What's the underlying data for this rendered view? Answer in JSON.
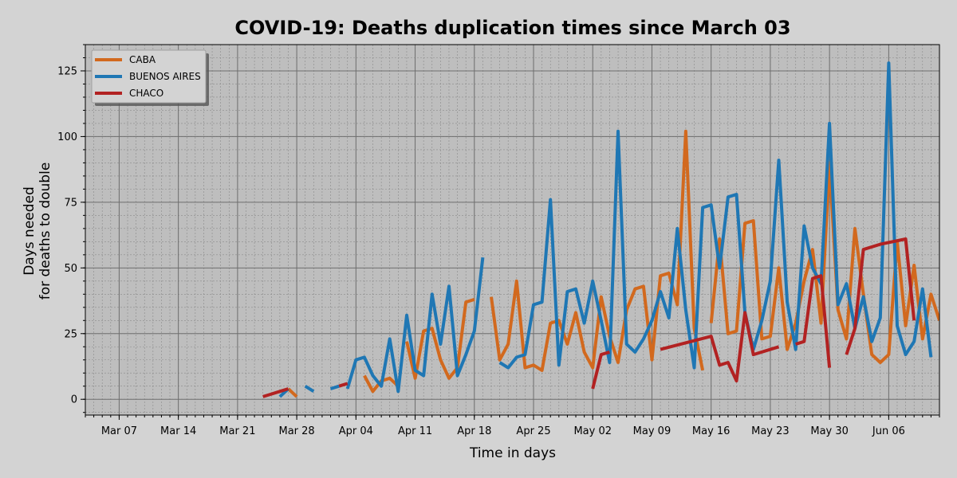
{
  "chart_data": {
    "type": "line",
    "title": "COVID-19: Deaths duplication times since March 03",
    "xlabel": "Time in days",
    "ylabel": "Days needed\nfor deaths to double",
    "x_unit": "date (2020)",
    "xlim": [
      "2020-03-03",
      "2020-06-12"
    ],
    "ylim": [
      -6,
      135
    ],
    "x_ticks": [
      {
        "label": "Mar 07",
        "date": "2020-03-07"
      },
      {
        "label": "Mar 14",
        "date": "2020-03-14"
      },
      {
        "label": "Mar 21",
        "date": "2020-03-21"
      },
      {
        "label": "Mar 28",
        "date": "2020-03-28"
      },
      {
        "label": "Apr 04",
        "date": "2020-04-04"
      },
      {
        "label": "Apr 11",
        "date": "2020-04-11"
      },
      {
        "label": "Apr 18",
        "date": "2020-04-18"
      },
      {
        "label": "Apr 25",
        "date": "2020-04-25"
      },
      {
        "label": "May 02",
        "date": "2020-05-02"
      },
      {
        "label": "May 09",
        "date": "2020-05-09"
      },
      {
        "label": "May 16",
        "date": "2020-05-16"
      },
      {
        "label": "May 23",
        "date": "2020-05-23"
      },
      {
        "label": "May 30",
        "date": "2020-05-30"
      },
      {
        "label": "Jun 06",
        "date": "2020-06-06"
      }
    ],
    "y_ticks": [
      0,
      25,
      50,
      75,
      100,
      125
    ],
    "grid": true,
    "minor_grid": true,
    "legend": "top-left",
    "colors": {
      "background": "#d3d3d3",
      "plot_area": "#bebebe"
    },
    "series": [
      {
        "name": "CABA",
        "color": "#d2691e",
        "segments": [
          [
            [
              "2020-03-27",
              4
            ],
            [
              "2020-03-28",
              1
            ]
          ],
          [
            [
              "2020-04-05",
              9
            ],
            [
              "2020-04-06",
              3
            ],
            [
              "2020-04-07",
              7
            ],
            [
              "2020-04-08",
              8
            ],
            [
              "2020-04-09",
              5
            ]
          ],
          [
            [
              "2020-04-10",
              22
            ],
            [
              "2020-04-11",
              8
            ],
            [
              "2020-04-12",
              26
            ],
            [
              "2020-04-13",
              27
            ],
            [
              "2020-04-14",
              15
            ],
            [
              "2020-04-15",
              8
            ],
            [
              "2020-04-16",
              12
            ],
            [
              "2020-04-17",
              37
            ],
            [
              "2020-04-18",
              38
            ]
          ],
          [
            [
              "2020-04-20",
              39
            ],
            [
              "2020-04-21",
              15
            ],
            [
              "2020-04-22",
              21
            ],
            [
              "2020-04-23",
              45
            ],
            [
              "2020-04-24",
              12
            ],
            [
              "2020-04-25",
              13
            ],
            [
              "2020-04-26",
              11
            ],
            [
              "2020-04-27",
              29
            ],
            [
              "2020-04-28",
              30
            ],
            [
              "2020-04-29",
              21
            ],
            [
              "2020-04-30",
              33
            ],
            [
              "2020-05-01",
              18
            ],
            [
              "2020-05-02",
              12
            ],
            [
              "2020-05-03",
              39
            ],
            [
              "2020-05-04",
              24
            ],
            [
              "2020-05-05",
              14
            ],
            [
              "2020-05-06",
              34
            ],
            [
              "2020-05-07",
              42
            ],
            [
              "2020-05-08",
              43
            ],
            [
              "2020-05-09",
              15
            ],
            [
              "2020-05-10",
              47
            ],
            [
              "2020-05-11",
              48
            ],
            [
              "2020-05-12",
              36
            ],
            [
              "2020-05-13",
              102
            ],
            [
              "2020-05-14",
              27
            ],
            [
              "2020-05-15",
              11
            ]
          ],
          [
            [
              "2020-05-16",
              29
            ],
            [
              "2020-05-17",
              61
            ],
            [
              "2020-05-18",
              25
            ],
            [
              "2020-05-19",
              26
            ],
            [
              "2020-05-20",
              67
            ],
            [
              "2020-05-21",
              68
            ],
            [
              "2020-05-22",
              23
            ],
            [
              "2020-05-23",
              24
            ],
            [
              "2020-05-24",
              50
            ],
            [
              "2020-05-25",
              19
            ],
            [
              "2020-05-26",
              29
            ],
            [
              "2020-05-27",
              45
            ],
            [
              "2020-05-28",
              57
            ],
            [
              "2020-05-29",
              29
            ],
            [
              "2020-05-30",
              90
            ],
            [
              "2020-05-31",
              34
            ],
            [
              "2020-06-01",
              23
            ],
            [
              "2020-06-02",
              65
            ],
            [
              "2020-06-03",
              40
            ],
            [
              "2020-06-04",
              17
            ],
            [
              "2020-06-05",
              14
            ],
            [
              "2020-06-06",
              17
            ],
            [
              "2020-06-07",
              60
            ],
            [
              "2020-06-08",
              28
            ],
            [
              "2020-06-09",
              51
            ],
            [
              "2020-06-10",
              23
            ],
            [
              "2020-06-11",
              40
            ],
            [
              "2020-06-12",
              30
            ]
          ]
        ]
      },
      {
        "name": "BUENOS AIRES",
        "color": "#1f77b4",
        "segments": [
          [
            [
              "2020-03-26",
              1
            ],
            [
              "2020-03-27",
              4
            ]
          ],
          [
            [
              "2020-03-29",
              5
            ],
            [
              "2020-03-30",
              3
            ]
          ],
          [
            [
              "2020-04-01",
              4
            ],
            [
              "2020-04-02",
              5
            ]
          ],
          [
            [
              "2020-04-03",
              4
            ],
            [
              "2020-04-04",
              15
            ],
            [
              "2020-04-05",
              16
            ],
            [
              "2020-04-06",
              9
            ],
            [
              "2020-04-07",
              5
            ],
            [
              "2020-04-08",
              23
            ],
            [
              "2020-04-09",
              3
            ],
            [
              "2020-04-10",
              32
            ],
            [
              "2020-04-11",
              11
            ],
            [
              "2020-04-12",
              9
            ],
            [
              "2020-04-13",
              40
            ],
            [
              "2020-04-14",
              21
            ],
            [
              "2020-04-15",
              43
            ],
            [
              "2020-04-16",
              9
            ],
            [
              "2020-04-17",
              17
            ],
            [
              "2020-04-18",
              26
            ],
            [
              "2020-04-19",
              54
            ]
          ],
          [
            [
              "2020-04-21",
              14
            ],
            [
              "2020-04-22",
              12
            ],
            [
              "2020-04-23",
              16
            ],
            [
              "2020-04-24",
              17
            ],
            [
              "2020-04-25",
              36
            ],
            [
              "2020-04-26",
              37
            ],
            [
              "2020-04-27",
              76
            ],
            [
              "2020-04-28",
              13
            ],
            [
              "2020-04-29",
              41
            ],
            [
              "2020-04-30",
              42
            ],
            [
              "2020-05-01",
              29
            ],
            [
              "2020-05-02",
              45
            ],
            [
              "2020-05-03",
              30
            ],
            [
              "2020-05-04",
              14
            ],
            [
              "2020-05-05",
              102
            ],
            [
              "2020-05-06",
              21
            ],
            [
              "2020-05-07",
              18
            ],
            [
              "2020-05-08",
              23
            ],
            [
              "2020-05-09",
              30
            ],
            [
              "2020-05-10",
              41
            ],
            [
              "2020-05-11",
              31
            ],
            [
              "2020-05-12",
              65
            ],
            [
              "2020-05-13",
              34
            ],
            [
              "2020-05-14",
              12
            ],
            [
              "2020-05-15",
              73
            ],
            [
              "2020-05-16",
              74
            ],
            [
              "2020-05-17",
              50
            ],
            [
              "2020-05-18",
              77
            ],
            [
              "2020-05-19",
              78
            ],
            [
              "2020-05-20",
              33
            ],
            [
              "2020-05-21",
              19
            ],
            [
              "2020-05-22",
              30
            ],
            [
              "2020-05-23",
              45
            ],
            [
              "2020-05-24",
              91
            ],
            [
              "2020-05-25",
              37
            ],
            [
              "2020-05-26",
              19
            ],
            [
              "2020-05-27",
              66
            ],
            [
              "2020-05-28",
              50
            ],
            [
              "2020-05-29",
              44
            ],
            [
              "2020-05-30",
              105
            ],
            [
              "2020-05-31",
              36
            ],
            [
              "2020-06-01",
              44
            ],
            [
              "2020-06-02",
              27
            ],
            [
              "2020-06-03",
              39
            ],
            [
              "2020-06-04",
              22
            ],
            [
              "2020-06-05",
              31
            ],
            [
              "2020-06-06",
              128
            ],
            [
              "2020-06-07",
              28
            ],
            [
              "2020-06-08",
              17
            ],
            [
              "2020-06-09",
              22
            ],
            [
              "2020-06-10",
              42
            ],
            [
              "2020-06-11",
              16
            ]
          ]
        ]
      },
      {
        "name": "CHACO",
        "color": "#b22222",
        "segments": [
          [
            [
              "2020-03-24",
              1
            ],
            [
              "2020-03-25",
              2
            ],
            [
              "2020-03-26",
              3
            ],
            [
              "2020-03-27",
              4
            ]
          ],
          [
            [
              "2020-04-02",
              5
            ],
            [
              "2020-04-03",
              6
            ]
          ],
          [
            [
              "2020-05-02",
              4
            ],
            [
              "2020-05-03",
              17
            ],
            [
              "2020-05-04",
              18
            ]
          ],
          [
            [
              "2020-05-10",
              19
            ],
            [
              "2020-05-16",
              24
            ],
            [
              "2020-05-17",
              13
            ],
            [
              "2020-05-18",
              14
            ],
            [
              "2020-05-19",
              7
            ],
            [
              "2020-05-20",
              33
            ],
            [
              "2020-05-21",
              17
            ],
            [
              "2020-05-24",
              20
            ]
          ],
          [
            [
              "2020-05-26",
              21
            ],
            [
              "2020-05-27",
              22
            ],
            [
              "2020-05-28",
              46
            ],
            [
              "2020-05-29",
              47
            ],
            [
              "2020-05-30",
              12
            ]
          ],
          [
            [
              "2020-06-01",
              17
            ],
            [
              "2020-06-02",
              27
            ],
            [
              "2020-06-03",
              57
            ],
            [
              "2020-06-05",
              59
            ],
            [
              "2020-06-08",
              61
            ],
            [
              "2020-06-09",
              30
            ]
          ]
        ]
      }
    ]
  }
}
